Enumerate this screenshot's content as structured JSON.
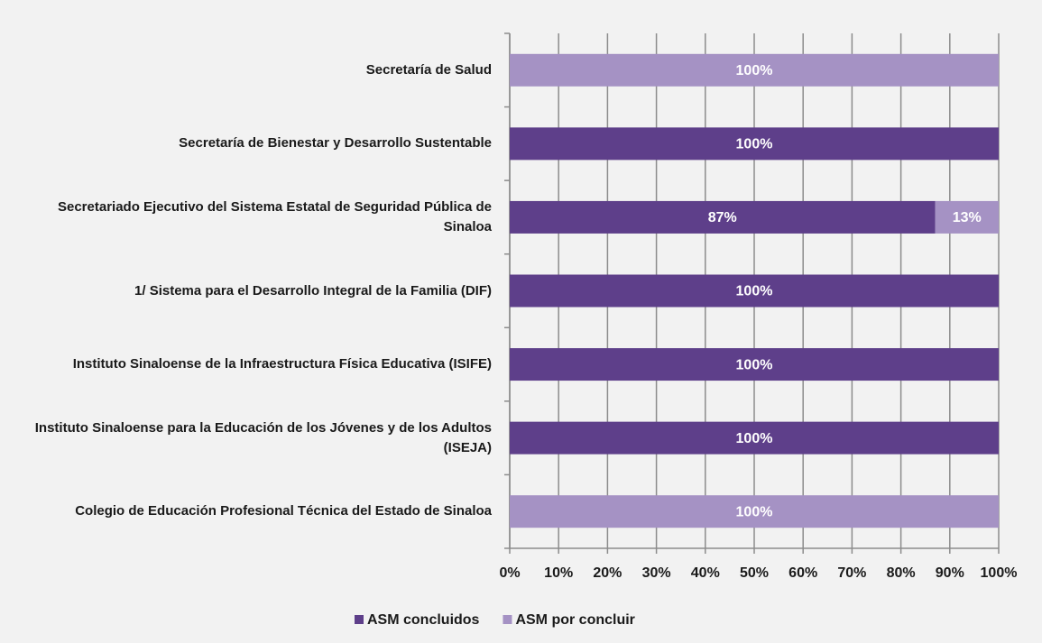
{
  "chart_data": {
    "type": "stacked-bar-horizontal",
    "categories": [
      "Secretaría de Salud",
      "Secretaría de Bienestar y Desarrollo Sustentable",
      "Secretariado Ejecutivo del Sistema Estatal de Seguridad Pública de Sinaloa",
      "1/ Sistema para el Desarrollo Integral de la Familia (DIF)",
      "Instituto Sinaloense de la Infraestructura Física Educativa (ISIFE)",
      "Instituto Sinaloense para la Educación de los Jóvenes y de los Adultos (ISEJA)",
      "Colegio de Educación Profesional Técnica del Estado de Sinaloa"
    ],
    "series": [
      {
        "name": "ASM concluidos",
        "color": "#5e3f8a",
        "values": [
          0,
          100,
          87,
          100,
          100,
          100,
          0
        ],
        "value_labels": [
          null,
          "100%",
          "87%",
          "100%",
          "100%",
          "100%",
          null
        ]
      },
      {
        "name": "ASM por concluir",
        "color": "#a592c4",
        "values": [
          100,
          0,
          13,
          0,
          0,
          0,
          100
        ],
        "value_labels": [
          "100%",
          null,
          "13%",
          null,
          null,
          null,
          "100%"
        ]
      }
    ],
    "xlim": [
      0,
      100
    ],
    "xticks": [
      {
        "value": 0,
        "label": "0%"
      },
      {
        "value": 10,
        "label": "10%"
      },
      {
        "value": 20,
        "label": "20%"
      },
      {
        "value": 30,
        "label": "30%"
      },
      {
        "value": 40,
        "label": "40%"
      },
      {
        "value": 50,
        "label": "50%"
      },
      {
        "value": 60,
        "label": "60%"
      },
      {
        "value": 70,
        "label": "70%"
      },
      {
        "value": 80,
        "label": "80%"
      },
      {
        "value": 90,
        "label": "90%"
      },
      {
        "value": {
          "value": 100
        },
        "label": "100%"
      }
    ],
    "grid": true,
    "legend": "bottom"
  }
}
